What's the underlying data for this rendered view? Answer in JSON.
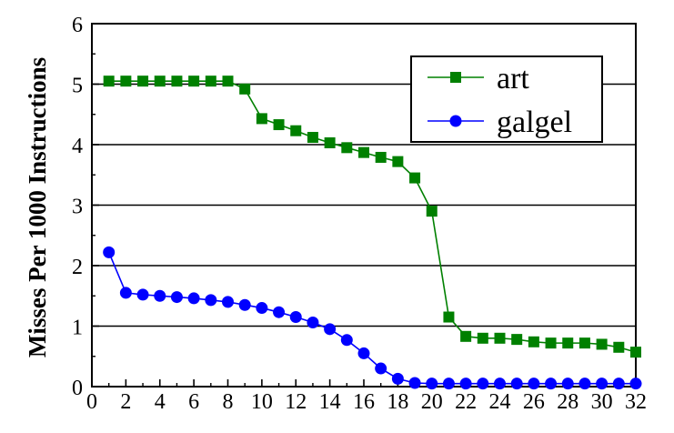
{
  "chart_data": {
    "type": "line",
    "title": "",
    "xlabel": "",
    "ylabel": "Misses Per 1000 Instructions",
    "xlim": [
      0,
      32
    ],
    "ylim": [
      0,
      6
    ],
    "xticks": [
      0,
      2,
      4,
      6,
      8,
      10,
      12,
      14,
      16,
      18,
      20,
      22,
      24,
      26,
      28,
      30,
      32
    ],
    "yticks": [
      0,
      1,
      2,
      3,
      4,
      5,
      6
    ],
    "grid": "horizontal",
    "legend_position": "top-right",
    "x": [
      1,
      2,
      3,
      4,
      5,
      6,
      7,
      8,
      9,
      10,
      11,
      12,
      13,
      14,
      15,
      16,
      17,
      18,
      19,
      20,
      21,
      22,
      23,
      24,
      25,
      26,
      27,
      28,
      29,
      30,
      31,
      32
    ],
    "series": [
      {
        "name": "art",
        "color": "#008000",
        "marker": "square",
        "values": [
          5.05,
          5.05,
          5.05,
          5.05,
          5.05,
          5.05,
          5.05,
          5.05,
          4.92,
          4.43,
          4.33,
          4.23,
          4.12,
          4.03,
          3.95,
          3.87,
          3.79,
          3.72,
          3.45,
          2.9,
          1.15,
          0.83,
          0.8,
          0.8,
          0.78,
          0.74,
          0.72,
          0.72,
          0.72,
          0.7,
          0.65,
          0.57
        ]
      },
      {
        "name": "galgel",
        "color": "#0000ff",
        "marker": "circle",
        "values": [
          2.22,
          1.55,
          1.52,
          1.5,
          1.48,
          1.46,
          1.43,
          1.4,
          1.35,
          1.3,
          1.23,
          1.15,
          1.06,
          0.95,
          0.77,
          0.55,
          0.3,
          0.13,
          0.06,
          0.05,
          0.05,
          0.05,
          0.05,
          0.05,
          0.05,
          0.05,
          0.05,
          0.05,
          0.05,
          0.05,
          0.05,
          0.05
        ]
      }
    ]
  }
}
